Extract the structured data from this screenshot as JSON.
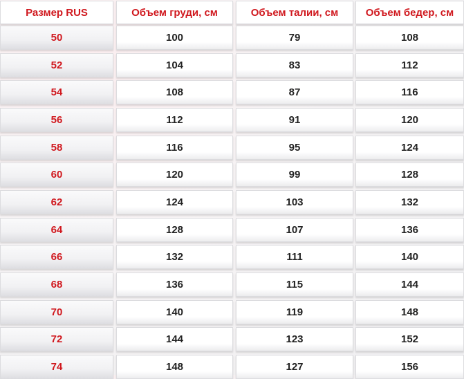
{
  "table": {
    "header": [
      "Размер RUS",
      "Объем груди, см",
      "Объем талии, см",
      "Объем бедер, см"
    ],
    "rows": [
      [
        50,
        100,
        79,
        108
      ],
      [
        52,
        104,
        83,
        112
      ],
      [
        54,
        108,
        87,
        116
      ],
      [
        56,
        112,
        91,
        120
      ],
      [
        58,
        116,
        95,
        124
      ],
      [
        60,
        120,
        99,
        128
      ],
      [
        62,
        124,
        103,
        132
      ],
      [
        64,
        128,
        107,
        136
      ],
      [
        66,
        132,
        111,
        140
      ],
      [
        68,
        136,
        115,
        144
      ],
      [
        70,
        140,
        119,
        148
      ],
      [
        72,
        144,
        123,
        152
      ],
      [
        74,
        148,
        127,
        156
      ]
    ]
  }
}
